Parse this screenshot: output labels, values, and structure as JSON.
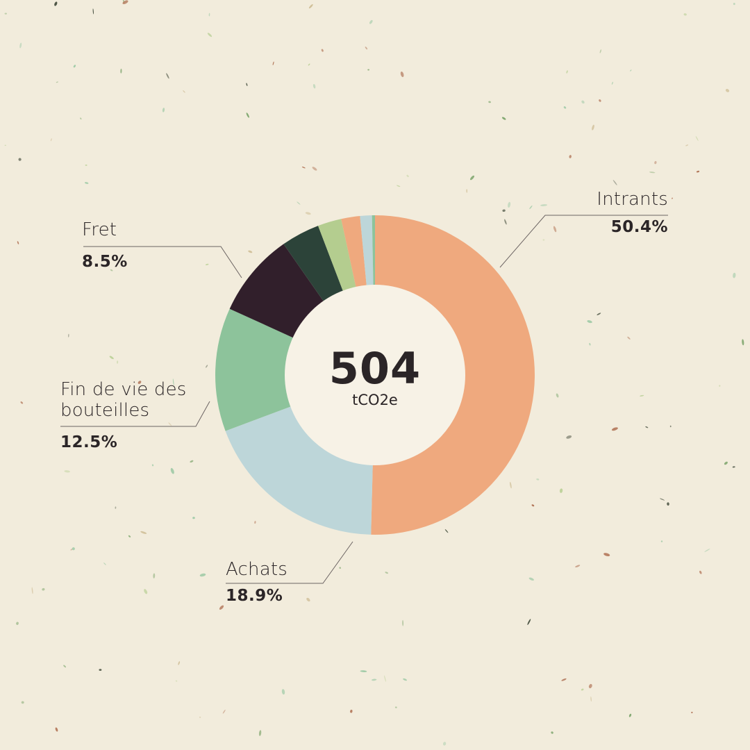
{
  "chart_data": {
    "type": "pie",
    "center_value": "504",
    "center_unit": "tCO2e",
    "slices": [
      {
        "label": "Intrants",
        "value": 50.4,
        "value_text": "50.4%",
        "color": "#efa97e"
      },
      {
        "label": "Achats",
        "value": 18.9,
        "value_text": "18.9%",
        "color": "#bdd6d9"
      },
      {
        "label": "Fin de vie des bouteilles",
        "value": 12.5,
        "value_text": "12.5%",
        "color": "#8dc39b"
      },
      {
        "label": "Fret",
        "value": 8.5,
        "value_text": "8.5%",
        "color": "#311f2b"
      },
      {
        "label": "",
        "value": 3.9,
        "color": "#2c4339"
      },
      {
        "label": "",
        "value": 2.4,
        "color": "#b4cd8f"
      },
      {
        "label": "",
        "value": 1.9,
        "color": "#efa97e"
      },
      {
        "label": "",
        "value": 1.2,
        "color": "#bdd6d9"
      },
      {
        "label": "",
        "value": 0.3,
        "color": "#8dc39b"
      }
    ]
  },
  "labels": {
    "intrants": {
      "name": "Intrants",
      "pct": "50.4%"
    },
    "achats": {
      "name": "Achats",
      "pct": "18.9%"
    },
    "fin_de_vie": {
      "name_line1": "Fin de vie des",
      "name_line2": "bouteilles",
      "pct": "12.5%"
    },
    "fret": {
      "name": "Fret",
      "pct": "8.5%"
    }
  },
  "colors": {
    "background": "#f2ecdc",
    "hole": "#f7f2e6",
    "text": "#2b2527",
    "leader": "#6b6362"
  }
}
